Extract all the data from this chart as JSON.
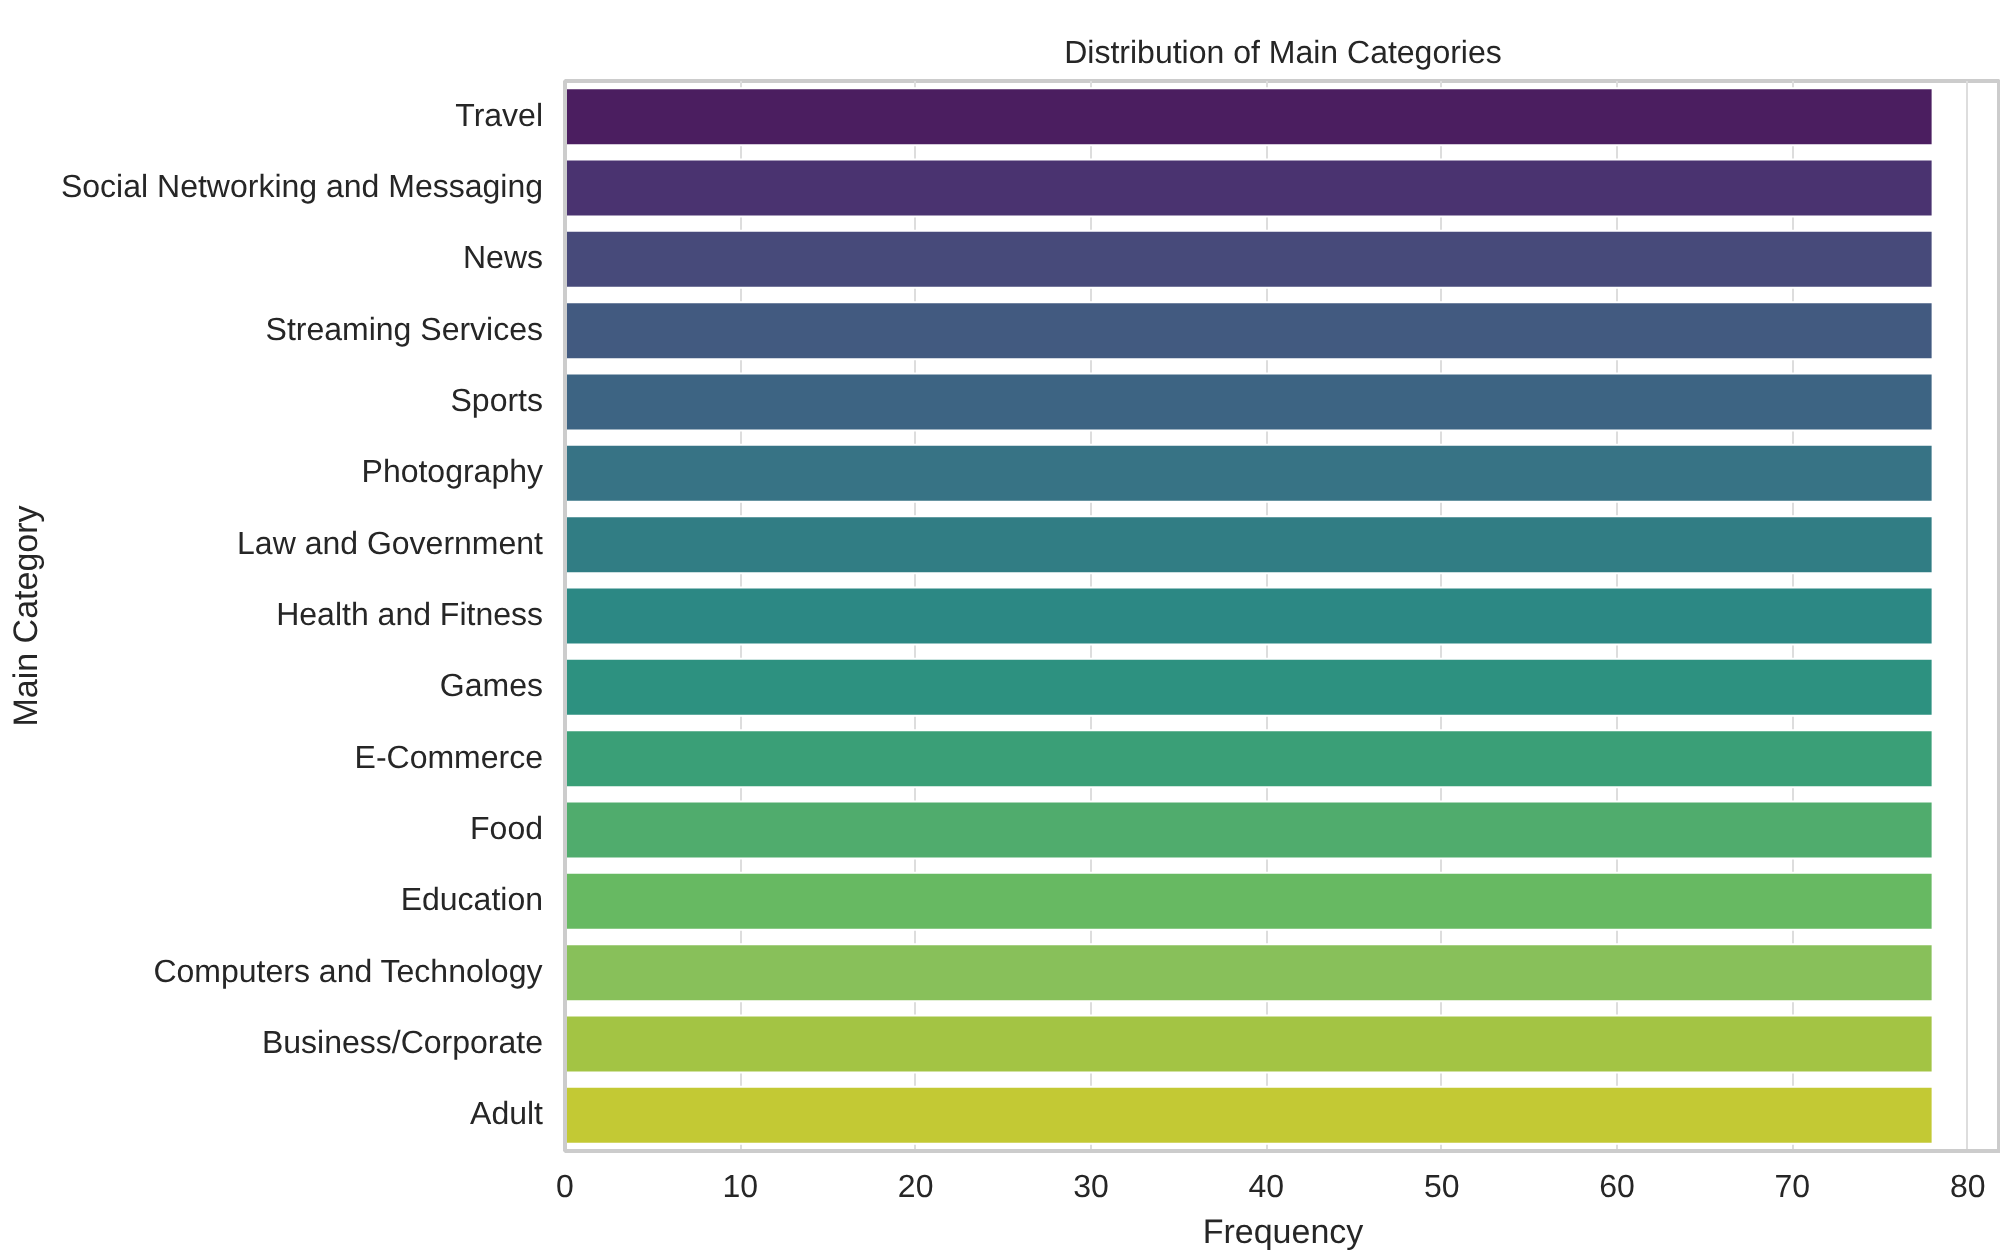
{
  "chart_data": {
    "type": "bar",
    "orientation": "horizontal",
    "title": "Distribution of Main Categories",
    "xlabel": "Frequency",
    "ylabel": "Main Category",
    "categories": [
      "Travel",
      "Social Networking and Messaging",
      "News",
      "Streaming Services",
      "Sports",
      "Photography",
      "Law and Government",
      "Health and Fitness",
      "Games",
      "E-Commerce",
      "Food",
      "Education",
      "Computers and Technology",
      "Business/Corporate",
      "Adult"
    ],
    "values": [
      78,
      78,
      78,
      78,
      78,
      78,
      78,
      78,
      78,
      78,
      78,
      78,
      78,
      78,
      78
    ],
    "colors": [
      "#4b1e60",
      "#4a3370",
      "#474a7a",
      "#425a80",
      "#3d6483",
      "#377385",
      "#317d84",
      "#2c8884",
      "#2d9180",
      "#3a9f77",
      "#50ac6d",
      "#67b962",
      "#88c05a",
      "#a3c444",
      "#c3c934"
    ],
    "xlim": [
      0,
      81.9
    ],
    "xticks": [
      0,
      10,
      20,
      30,
      40,
      50,
      60,
      70,
      80
    ],
    "grid": "x"
  }
}
